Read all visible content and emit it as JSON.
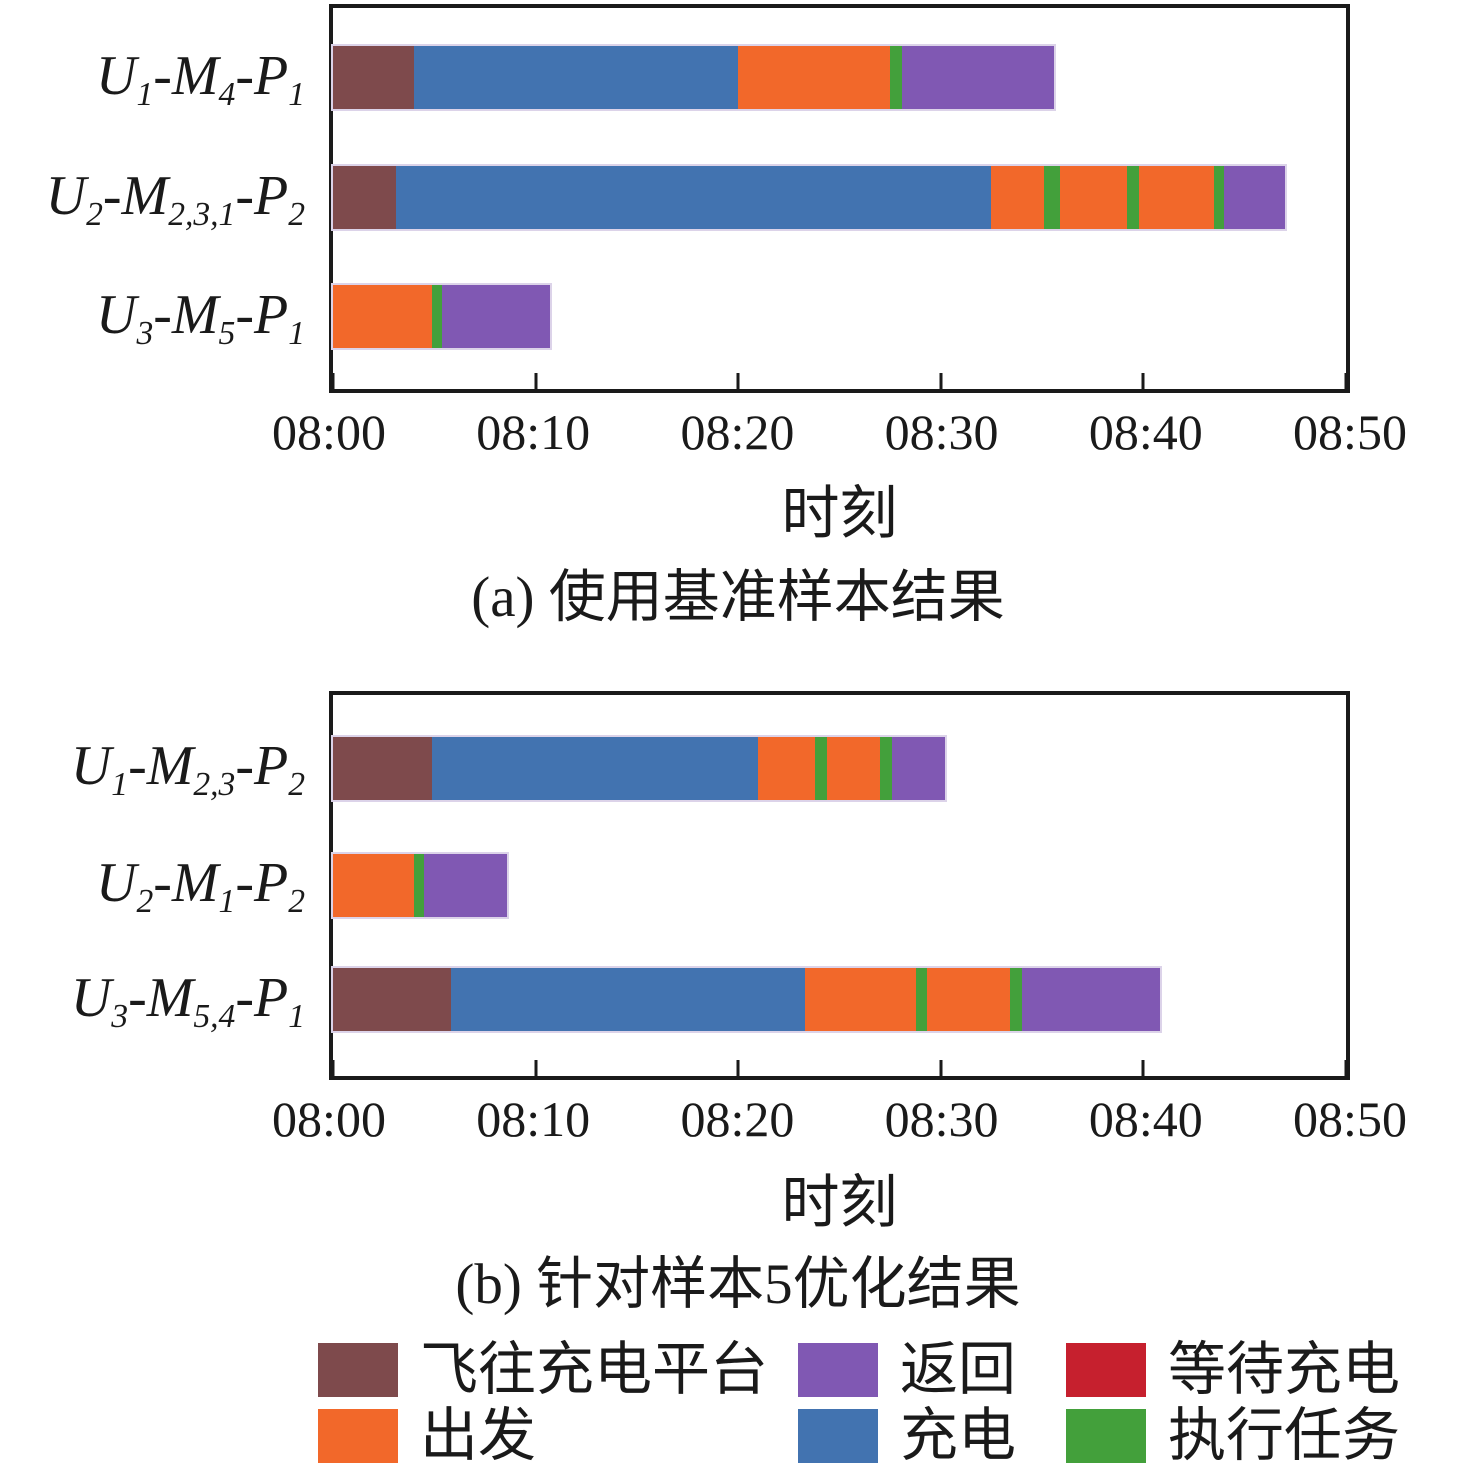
{
  "activities": {
    "fly": {
      "label": "飞往充电平台",
      "color": "#7E4A4C"
    },
    "depart": {
      "label": "出发",
      "color": "#F2682A"
    },
    "return": {
      "label": "返回",
      "color": "#8058B3"
    },
    "charge": {
      "label": "充电",
      "color": "#4273B0"
    },
    "wait": {
      "label": "等待充电",
      "color": "#C6202E"
    },
    "task": {
      "label": "执行任务",
      "color": "#43A03B"
    }
  },
  "legend": {
    "position": "bottom",
    "rows": [
      [
        {
          "activity": "fly"
        },
        {
          "activity": "return"
        },
        {
          "activity": "wait"
        }
      ],
      [
        {
          "activity": "depart"
        },
        {
          "activity": "charge"
        },
        {
          "activity": "task"
        }
      ]
    ]
  },
  "chart_data": [
    {
      "id": "a",
      "type": "bar",
      "orientation": "horizontal-stacked-gantt",
      "caption": "(a) 使用基准样本结果",
      "xlabel": "时刻",
      "x_ticks": [
        "08:00",
        "08:10",
        "08:20",
        "08:30",
        "08:40",
        "08:50"
      ],
      "x_range_min": [
        0,
        50
      ],
      "x_origin": "08:00",
      "grid": false,
      "rows": [
        {
          "label_plain": "U1-M4-P1",
          "label_parts": [
            {
              "text": "U",
              "sub": "1"
            },
            {
              "text": "-M",
              "sub": "4"
            },
            {
              "text": "-P",
              "sub": "1"
            }
          ],
          "segments": [
            {
              "activity": "fly",
              "start_min": 0,
              "end_min": 4.0
            },
            {
              "activity": "charge",
              "start_min": 4.0,
              "end_min": 20.0
            },
            {
              "activity": "depart",
              "start_min": 20.0,
              "end_min": 27.5
            },
            {
              "activity": "task",
              "start_min": 27.5,
              "end_min": 28.1
            },
            {
              "activity": "return",
              "start_min": 28.1,
              "end_min": 35.6
            }
          ]
        },
        {
          "label_plain": "U2-M2,3,1-P2",
          "label_parts": [
            {
              "text": "U",
              "sub": "2"
            },
            {
              "text": "-M",
              "sub": "2,3,1"
            },
            {
              "text": "-P",
              "sub": "2"
            }
          ],
          "segments": [
            {
              "activity": "fly",
              "start_min": 0,
              "end_min": 3.1
            },
            {
              "activity": "charge",
              "start_min": 3.1,
              "end_min": 32.5
            },
            {
              "activity": "depart",
              "start_min": 32.5,
              "end_min": 35.1
            },
            {
              "activity": "task",
              "start_min": 35.1,
              "end_min": 35.9
            },
            {
              "activity": "depart",
              "start_min": 35.9,
              "end_min": 39.2
            },
            {
              "activity": "task",
              "start_min": 39.2,
              "end_min": 39.8
            },
            {
              "activity": "depart",
              "start_min": 39.8,
              "end_min": 43.5
            },
            {
              "activity": "task",
              "start_min": 43.5,
              "end_min": 44.0
            },
            {
              "activity": "return",
              "start_min": 44.0,
              "end_min": 47.0
            }
          ]
        },
        {
          "label_plain": "U3-M5-P1",
          "label_parts": [
            {
              "text": "U",
              "sub": "3"
            },
            {
              "text": "-M",
              "sub": "5"
            },
            {
              "text": "-P",
              "sub": "1"
            }
          ],
          "segments": [
            {
              "activity": "depart",
              "start_min": 0,
              "end_min": 4.9
            },
            {
              "activity": "task",
              "start_min": 4.9,
              "end_min": 5.4
            },
            {
              "activity": "return",
              "start_min": 5.4,
              "end_min": 10.7
            }
          ]
        }
      ]
    },
    {
      "id": "b",
      "type": "bar",
      "orientation": "horizontal-stacked-gantt",
      "caption": "(b) 针对样本5优化结果",
      "xlabel": "时刻",
      "x_ticks": [
        "08:00",
        "08:10",
        "08:20",
        "08:30",
        "08:40",
        "08:50"
      ],
      "x_range_min": [
        0,
        50
      ],
      "x_origin": "08:00",
      "grid": false,
      "rows": [
        {
          "label_plain": "U1-M2,3-P2",
          "label_parts": [
            {
              "text": "U",
              "sub": "1"
            },
            {
              "text": "-M",
              "sub": "2,3"
            },
            {
              "text": "-P",
              "sub": "2"
            }
          ],
          "segments": [
            {
              "activity": "fly",
              "start_min": 0,
              "end_min": 4.9
            },
            {
              "activity": "charge",
              "start_min": 4.9,
              "end_min": 21.0
            },
            {
              "activity": "depart",
              "start_min": 21.0,
              "end_min": 23.8
            },
            {
              "activity": "task",
              "start_min": 23.8,
              "end_min": 24.4
            },
            {
              "activity": "depart",
              "start_min": 24.4,
              "end_min": 27.0
            },
            {
              "activity": "task",
              "start_min": 27.0,
              "end_min": 27.6
            },
            {
              "activity": "return",
              "start_min": 27.6,
              "end_min": 30.2
            }
          ]
        },
        {
          "label_plain": "U2-M1-P2",
          "label_parts": [
            {
              "text": "U",
              "sub": "2"
            },
            {
              "text": "-M",
              "sub": "1"
            },
            {
              "text": "-P",
              "sub": "2"
            }
          ],
          "segments": [
            {
              "activity": "depart",
              "start_min": 0,
              "end_min": 4.0
            },
            {
              "activity": "task",
              "start_min": 4.0,
              "end_min": 4.5
            },
            {
              "activity": "return",
              "start_min": 4.5,
              "end_min": 8.6
            }
          ]
        },
        {
          "label_plain": "U3-M5,4-P1",
          "label_parts": [
            {
              "text": "U",
              "sub": "3"
            },
            {
              "text": "-M",
              "sub": "5,4"
            },
            {
              "text": "-P",
              "sub": "1"
            }
          ],
          "segments": [
            {
              "activity": "fly",
              "start_min": 0,
              "end_min": 5.8
            },
            {
              "activity": "charge",
              "start_min": 5.8,
              "end_min": 23.3
            },
            {
              "activity": "depart",
              "start_min": 23.3,
              "end_min": 28.8
            },
            {
              "activity": "task",
              "start_min": 28.8,
              "end_min": 29.3
            },
            {
              "activity": "depart",
              "start_min": 29.3,
              "end_min": 33.4
            },
            {
              "activity": "task",
              "start_min": 33.4,
              "end_min": 34.0
            },
            {
              "activity": "return",
              "start_min": 34.0,
              "end_min": 40.8
            }
          ]
        }
      ]
    }
  ]
}
